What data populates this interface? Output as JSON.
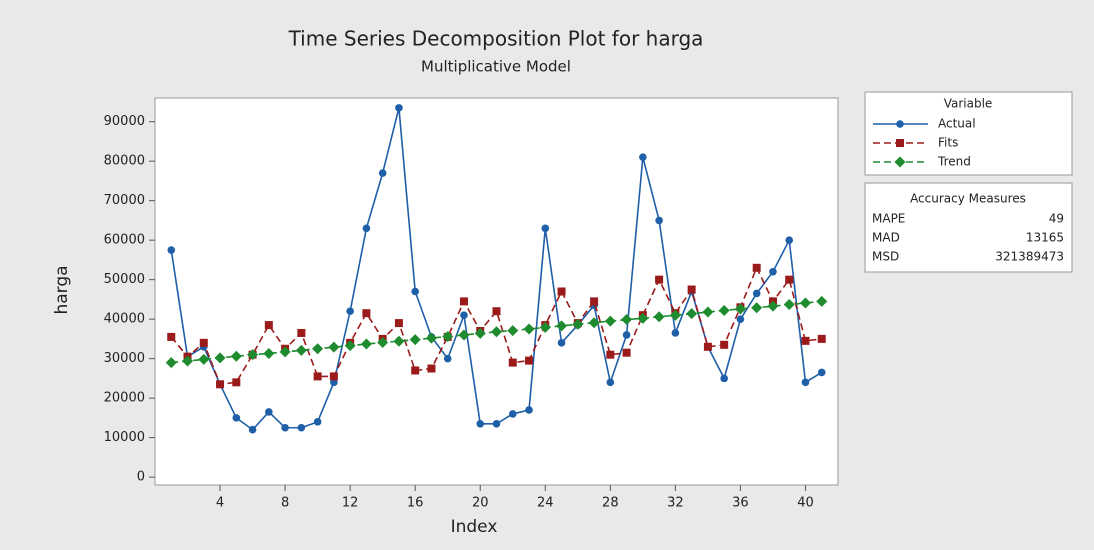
{
  "chart_data": {
    "type": "line",
    "title": "Time Series Decomposition Plot for harga",
    "subtitle": "Multiplicative Model",
    "x_label": "Index",
    "y_label": "harga",
    "x": [
      1,
      2,
      3,
      4,
      5,
      6,
      7,
      8,
      9,
      10,
      11,
      12,
      13,
      14,
      15,
      16,
      17,
      18,
      19,
      20,
      21,
      22,
      23,
      24,
      25,
      26,
      27,
      28,
      29,
      30,
      31,
      32,
      33,
      34,
      35,
      36,
      37,
      38,
      39,
      40,
      41
    ],
    "series": [
      {
        "name": "Actual",
        "color": "#1f5fa8",
        "marker": "circle",
        "dash": false,
        "values": [
          57500,
          30500,
          33000,
          23500,
          15000,
          12000,
          16500,
          12500,
          12500,
          14000,
          24000,
          42000,
          63000,
          77000,
          93500,
          47000,
          35500,
          30000,
          41000,
          13500,
          13500,
          16000,
          17000,
          63000,
          34000,
          38500,
          43500,
          24000,
          36000,
          81000,
          65000,
          36500,
          47000,
          33000,
          25000,
          40000,
          46500,
          52000,
          60000,
          24000,
          26500
        ]
      },
      {
        "name": "Fits",
        "color": "#9b1b1b",
        "marker": "square",
        "dash": true,
        "values": [
          35500,
          30500,
          34000,
          23500,
          24000,
          31000,
          38500,
          32500,
          36500,
          25500,
          25500,
          34000,
          41500,
          35000,
          39000,
          27000,
          27500,
          35500,
          44500,
          37000,
          42000,
          29000,
          29500,
          38500,
          47000,
          39000,
          44500,
          31000,
          31500,
          41000,
          50000,
          41500,
          47500,
          33000,
          33500,
          43000,
          53000,
          44500,
          50000,
          34500,
          35000
        ]
      },
      {
        "name": "Trend",
        "color": "#1e8c2e",
        "marker": "diamond",
        "dash": true,
        "values": [
          29000,
          29400,
          29800,
          30200,
          30600,
          31000,
          31300,
          31700,
          32100,
          32500,
          32900,
          33300,
          33700,
          34100,
          34400,
          34800,
          35200,
          35600,
          36000,
          36400,
          36800,
          37100,
          37500,
          37900,
          38300,
          38700,
          39100,
          39500,
          39900,
          40200,
          40600,
          41000,
          41400,
          41800,
          42200,
          42600,
          42900,
          43300,
          43700,
          44100,
          44500
        ]
      }
    ],
    "xlim": [
      0,
      42
    ],
    "xticks": [
      4,
      8,
      12,
      16,
      20,
      24,
      28,
      32,
      36,
      40
    ],
    "ylim": [
      -2000,
      96000
    ],
    "yticks": [
      0,
      10000,
      20000,
      30000,
      40000,
      50000,
      60000,
      70000,
      80000,
      90000
    ],
    "legend_title": "Variable",
    "accuracy": {
      "title": "Accuracy Measures",
      "rows": [
        {
          "name": "MAPE",
          "value": 49
        },
        {
          "name": "MAD",
          "value": 13165
        },
        {
          "name": "MSD",
          "value": 321389473
        }
      ]
    }
  }
}
